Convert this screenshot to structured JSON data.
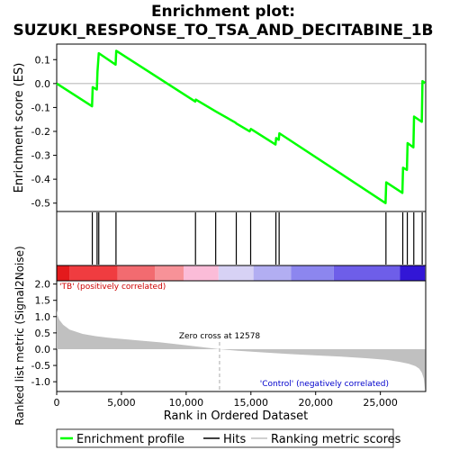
{
  "chart_data": [
    {
      "type": "line",
      "panel": "enrichment",
      "title_line1": "Enrichment plot:",
      "title_line2": "SUZUKI_RESPONSE_TO_TSA_AND_DECITABINE_1B",
      "ylabel": "Enrichment score (ES)",
      "xlim": [
        0,
        28500
      ],
      "ylim": [
        -0.535,
        0.165
      ],
      "yticks": [
        0.1,
        0.0,
        -0.1,
        -0.2,
        -0.3,
        -0.4,
        -0.5
      ],
      "ytick_labels": [
        "0.1",
        "0.0",
        "-0.1",
        "-0.2",
        "-0.3",
        "-0.4",
        "-0.5"
      ],
      "line_color": "#00ff00",
      "zero_line": true,
      "series": [
        {
          "name": "Enrichment profile",
          "x": [
            0,
            2730,
            2780,
            3100,
            3150,
            3250,
            4550,
            4600,
            10700,
            10750,
            12300,
            13800,
            13900,
            14900,
            15000,
            16900,
            16950,
            17150,
            17200,
            25400,
            25450,
            26700,
            26750,
            27050,
            27100,
            27550,
            27600,
            28200,
            28250,
            28450
          ],
          "y": [
            0.0,
            -0.095,
            -0.015,
            -0.025,
            0.05,
            0.127,
            0.079,
            0.137,
            -0.075,
            -0.067,
            -0.117,
            -0.163,
            -0.168,
            -0.2,
            -0.19,
            -0.255,
            -0.228,
            -0.235,
            -0.208,
            -0.5,
            -0.413,
            -0.457,
            -0.352,
            -0.361,
            -0.249,
            -0.267,
            -0.138,
            -0.16,
            0.01,
            0.002
          ]
        }
      ]
    },
    {
      "type": "scatter",
      "panel": "hits",
      "series": [
        {
          "name": "Hits",
          "x": [
            2750,
            3120,
            3250,
            4580,
            10720,
            12280,
            13870,
            14980,
            16930,
            17180,
            25430,
            26730,
            27080,
            27580,
            28230
          ]
        }
      ]
    },
    {
      "type": "heatmap",
      "panel": "rank-colorbar",
      "segments": [
        {
          "from": 0,
          "to": 1000,
          "color": "#e41a1c"
        },
        {
          "from": 1000,
          "to": 4700,
          "color": "#f03c40"
        },
        {
          "from": 4700,
          "to": 7600,
          "color": "#f26b70"
        },
        {
          "from": 7600,
          "to": 9800,
          "color": "#f79298"
        },
        {
          "from": 9800,
          "to": 12500,
          "color": "#fbbcd8"
        },
        {
          "from": 12500,
          "to": 15200,
          "color": "#d7d2f5"
        },
        {
          "from": 15200,
          "to": 18100,
          "color": "#b2aef2"
        },
        {
          "from": 18100,
          "to": 21400,
          "color": "#8c86ef"
        },
        {
          "from": 21400,
          "to": 26500,
          "color": "#6e5ee9"
        },
        {
          "from": 26500,
          "to": 28450,
          "color": "#3216d6"
        }
      ]
    },
    {
      "type": "area",
      "panel": "ranking-metric",
      "xlabel": "Rank in Ordered Dataset",
      "ylabel": "Ranked list metric (Signal2Noise)",
      "xlim": [
        0,
        28500
      ],
      "ylim": [
        -1.3,
        2.1
      ],
      "yticks": [
        2.0,
        1.5,
        1.0,
        0.5,
        0.0,
        -0.5,
        -1.0
      ],
      "ytick_labels": [
        "2.0",
        "1.5",
        "1.0",
        "0.5",
        "0.0",
        "-0.5",
        "-1.0"
      ],
      "xticks": [
        0,
        5000,
        10000,
        15000,
        20000,
        25000
      ],
      "xtick_labels": [
        "0",
        "5,000",
        "10,000",
        "15,000",
        "20,000",
        "25,000"
      ],
      "fill_color": "#c0c0c0",
      "series": [
        {
          "name": "Ranking metric scores",
          "x": [
            0,
            60,
            200,
            500,
            1000,
            2000,
            3000,
            4000,
            6000,
            8000,
            10000,
            12578,
            14000,
            16000,
            18000,
            20000,
            22000,
            24000,
            25500,
            26500,
            27200,
            27700,
            28000,
            28200,
            28350,
            28450
          ],
          "y": [
            1.2,
            1.05,
            0.9,
            0.75,
            0.6,
            0.47,
            0.4,
            0.35,
            0.28,
            0.21,
            0.12,
            0.0,
            -0.05,
            -0.1,
            -0.15,
            -0.19,
            -0.23,
            -0.28,
            -0.33,
            -0.39,
            -0.45,
            -0.52,
            -0.6,
            -0.72,
            -0.9,
            -1.25
          ]
        }
      ],
      "zero_cross_x": 12578,
      "annotations": {
        "positive": "'TB' (positively correlated)",
        "negative": "'Control' (negatively correlated)",
        "zero_cross": "Zero cross at 12578"
      },
      "annotation_colors": {
        "positive": "#cc0000",
        "negative": "#0000cc",
        "zero_cross": "#000000"
      }
    }
  ],
  "legend": {
    "placement": "bottom",
    "items": [
      {
        "label": "Enrichment profile",
        "color": "#00ff00"
      },
      {
        "label": "Hits",
        "color": "#000000"
      },
      {
        "label": "Ranking metric scores",
        "color": "#c0c0c0"
      }
    ]
  }
}
